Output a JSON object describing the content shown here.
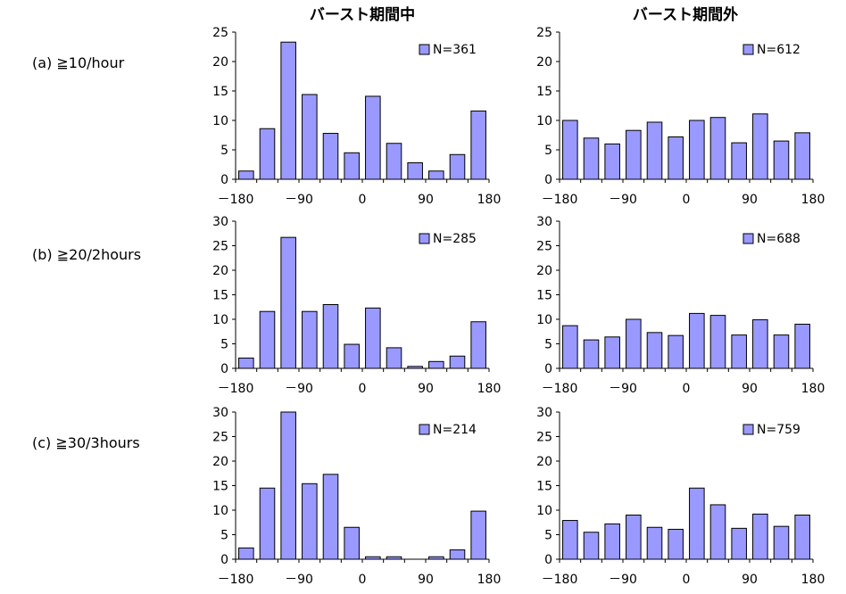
{
  "column_titles": [
    "バースト期間中",
    "バースト期間外"
  ],
  "row_labels": [
    "(a) ≧10/hour",
    "(b) ≧20/2hours",
    "(c) ≧30/3hours"
  ],
  "colors": {
    "bar_fill": "#9999ff",
    "bar_stroke": "#000000"
  },
  "chart_data": [
    {
      "type": "bar",
      "row": 0,
      "col": 0,
      "legend": "N=361",
      "x": [
        -165,
        -135,
        -105,
        -75,
        -45,
        -15,
        15,
        45,
        75,
        105,
        135,
        165
      ],
      "values": [
        1.4,
        8.6,
        23.3,
        14.4,
        7.8,
        4.5,
        14.1,
        6.1,
        2.8,
        1.4,
        4.2,
        11.6
      ],
      "ylim": [
        0,
        25
      ],
      "yticks": [
        0,
        5,
        10,
        15,
        20,
        25
      ],
      "xticks": [
        "－180",
        "－90",
        "0",
        "90",
        "180"
      ],
      "xlim": [
        -180,
        180
      ]
    },
    {
      "type": "bar",
      "row": 0,
      "col": 1,
      "legend": "N=612",
      "x": [
        -165,
        -135,
        -105,
        -75,
        -45,
        -15,
        15,
        45,
        75,
        105,
        135,
        165
      ],
      "values": [
        10.0,
        7.0,
        6.0,
        8.3,
        9.7,
        7.2,
        10.0,
        10.5,
        6.2,
        11.1,
        6.5,
        7.9
      ],
      "ylim": [
        0,
        25
      ],
      "yticks": [
        0,
        5,
        10,
        15,
        20,
        25
      ],
      "xticks": [
        "－180",
        "－90",
        "0",
        "90",
        "180"
      ],
      "xlim": [
        -180,
        180
      ]
    },
    {
      "type": "bar",
      "row": 1,
      "col": 0,
      "legend": "N=285",
      "x": [
        -165,
        -135,
        -105,
        -75,
        -45,
        -15,
        15,
        45,
        75,
        105,
        135,
        165
      ],
      "values": [
        2.1,
        11.6,
        26.7,
        11.6,
        13.0,
        4.9,
        12.3,
        4.2,
        0.4,
        1.4,
        2.5,
        9.5
      ],
      "ylim": [
        0,
        30
      ],
      "yticks": [
        0,
        5,
        10,
        15,
        20,
        25,
        30
      ],
      "xticks": [
        "－180",
        "－90",
        "0",
        "90",
        "180"
      ],
      "xlim": [
        -180,
        180
      ]
    },
    {
      "type": "bar",
      "row": 1,
      "col": 1,
      "legend": "N=688",
      "x": [
        -165,
        -135,
        -105,
        -75,
        -45,
        -15,
        15,
        45,
        75,
        105,
        135,
        165
      ],
      "values": [
        8.7,
        5.8,
        6.4,
        10.0,
        7.3,
        6.7,
        11.2,
        10.8,
        6.8,
        9.9,
        6.8,
        9.0
      ],
      "ylim": [
        0,
        30
      ],
      "yticks": [
        0,
        5,
        10,
        15,
        20,
        25,
        30
      ],
      "xticks": [
        "－180",
        "－90",
        "0",
        "90",
        "180"
      ],
      "xlim": [
        -180,
        180
      ]
    },
    {
      "type": "bar",
      "row": 2,
      "col": 0,
      "legend": "N=214",
      "x": [
        -165,
        -135,
        -105,
        -75,
        -45,
        -15,
        15,
        45,
        75,
        105,
        135,
        165
      ],
      "values": [
        2.3,
        14.5,
        30.0,
        15.4,
        17.3,
        6.5,
        0.5,
        0.5,
        0.0,
        0.5,
        1.9,
        9.8
      ],
      "ylim": [
        0,
        30
      ],
      "yticks": [
        0,
        5,
        10,
        15,
        20,
        25,
        30
      ],
      "xticks": [
        "－180",
        "－90",
        "0",
        "90",
        "180"
      ],
      "xlim": [
        -180,
        180
      ]
    },
    {
      "type": "bar",
      "row": 2,
      "col": 1,
      "legend": "N=759",
      "x": [
        -165,
        -135,
        -105,
        -75,
        -45,
        -15,
        15,
        45,
        75,
        105,
        135,
        165
      ],
      "values": [
        7.9,
        5.5,
        7.2,
        9.0,
        6.5,
        6.1,
        14.5,
        11.1,
        6.3,
        9.2,
        6.7,
        9.0
      ],
      "ylim": [
        0,
        30
      ],
      "yticks": [
        0,
        5,
        10,
        15,
        20,
        25,
        30
      ],
      "xticks": [
        "－180",
        "－90",
        "0",
        "90",
        "180"
      ],
      "xlim": [
        -180,
        180
      ]
    }
  ]
}
